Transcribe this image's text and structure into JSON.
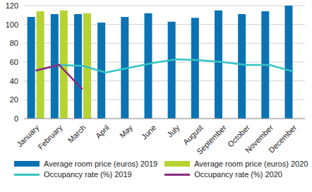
{
  "chart_data": {
    "type": "bar",
    "categories": [
      "January",
      "February",
      "March",
      "April",
      "May",
      "June",
      "July",
      "August",
      "September",
      "October",
      "November",
      "December"
    ],
    "series": [
      {
        "name": "Average room price (euros) 2019",
        "type": "bar",
        "color": "#0a73b3",
        "values": [
          108,
          111,
          111,
          102,
          108,
          112,
          103,
          107,
          115,
          111,
          114,
          120
        ]
      },
      {
        "name": "Average room price (euros) 2020",
        "type": "bar",
        "color": "#b5d334",
        "values": [
          114,
          115,
          112,
          null,
          null,
          null,
          null,
          null,
          null,
          null,
          null,
          null
        ]
      },
      {
        "name": "Occupancy rate (%) 2019",
        "type": "line",
        "color": "#33c4c4",
        "values": [
          51,
          57,
          56,
          49,
          54,
          59,
          63,
          62,
          60,
          57,
          57,
          50
        ]
      },
      {
        "name": "Occupancy rate (%) 2020",
        "type": "line",
        "color": "#8a2a7e",
        "values": [
          51,
          57,
          31,
          null,
          null,
          null,
          null,
          null,
          null,
          null,
          null,
          null
        ]
      }
    ],
    "ylim": [
      0,
      120
    ],
    "yticks": [
      0,
      20,
      40,
      60,
      80,
      100,
      120
    ],
    "grid": true,
    "legend": "bottom"
  }
}
